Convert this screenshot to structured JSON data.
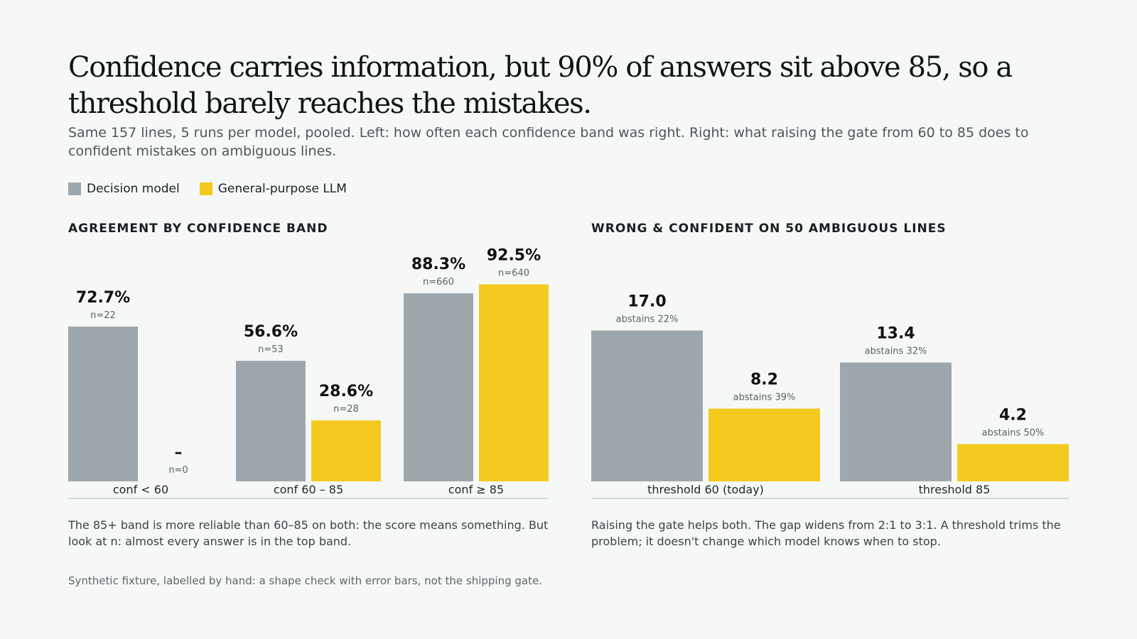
{
  "title": "Confidence carries information, but 90% of answers sit above 85, so a threshold barely reaches the mistakes.",
  "subtitle": "Same 157 lines, 5 runs per model, pooled. Left: how often each confidence band was right. Right: what raising the gate from 60 to 85 does to confident mistakes on ambiguous lines.",
  "legend": [
    {
      "label": "Decision model",
      "color": "#9ea8ac"
    },
    {
      "label": "General-purpose LLM",
      "color": "#f4ca1e"
    }
  ],
  "footnote": "Synthetic fixture, labelled by hand: a shape check with error bars, not the shipping gate.",
  "chart_data": [
    {
      "type": "bar",
      "title": "AGREEMENT BY CONFIDENCE BAND",
      "categories": [
        "conf < 60",
        "conf 60 – 85",
        "conf ≥ 85"
      ],
      "ylim": [
        0,
        100
      ],
      "series": [
        {
          "name": "Decision model",
          "color": "#9ea8ac",
          "values": [
            72.7,
            56.6,
            88.3
          ],
          "labels": [
            "72.7%",
            "56.6%",
            "88.3%"
          ],
          "sublabels": [
            "n=22",
            "n=53",
            "n=660"
          ]
        },
        {
          "name": "General-purpose LLM",
          "color": "#f4ca1e",
          "values": [
            null,
            28.6,
            92.5
          ],
          "labels": [
            "–",
            "28.6%",
            "92.5%"
          ],
          "sublabels": [
            "n=0",
            "n=28",
            "n=640"
          ]
        }
      ],
      "note": "The 85+ band is more reliable than 60–85 on both: the score means something. But look at n: almost every answer is in the top band."
    },
    {
      "type": "bar",
      "title": "WRONG & CONFIDENT ON 50 AMBIGUOUS LINES",
      "categories": [
        "threshold 60 (today)",
        "threshold 85"
      ],
      "ylim": [
        0,
        24
      ],
      "series": [
        {
          "name": "Decision model",
          "color": "#9ea8ac",
          "values": [
            17.0,
            13.4
          ],
          "labels": [
            "17.0",
            "13.4"
          ],
          "sublabels": [
            "abstains 22%",
            "abstains 32%"
          ]
        },
        {
          "name": "General-purpose LLM",
          "color": "#f4ca1e",
          "values": [
            8.2,
            4.2
          ],
          "labels": [
            "8.2",
            "4.2"
          ],
          "sublabels": [
            "abstains 39%",
            "abstains 50%"
          ]
        }
      ],
      "note": "Raising the gate helps both. The gap widens from 2:1 to 3:1. A threshold trims the problem; it doesn't change which model knows when to stop."
    }
  ]
}
